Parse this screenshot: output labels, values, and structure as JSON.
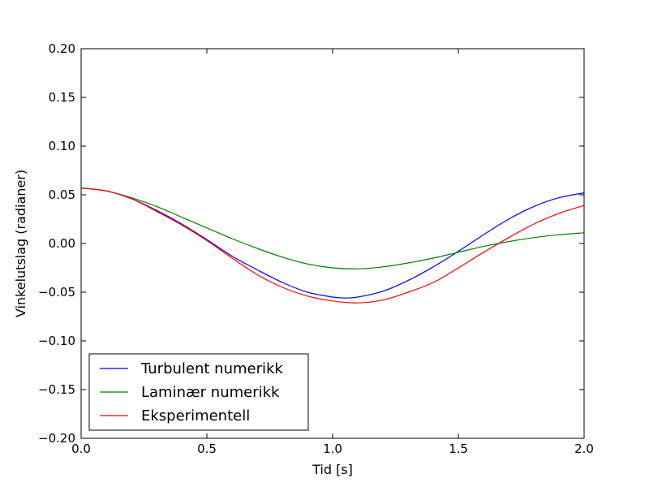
{
  "chart_data": {
    "type": "line",
    "xlabel": "Tid [s]",
    "ylabel": "Vinkelutslag (radianer)",
    "xlim": [
      0,
      2
    ],
    "ylim": [
      -0.2,
      0.2
    ],
    "xticks": [
      0.0,
      0.5,
      1.0,
      1.5,
      2.0
    ],
    "xtick_labels": [
      "0.0",
      "0.5",
      "1.0",
      "1.5",
      "2.0"
    ],
    "yticks": [
      -0.2,
      -0.15,
      -0.1,
      -0.05,
      0.0,
      0.05,
      0.1,
      0.15,
      0.2
    ],
    "ytick_labels": [
      "−0.20",
      "−0.15",
      "−0.10",
      "−0.05",
      "0.00",
      "0.05",
      "0.10",
      "0.15",
      "0.20"
    ],
    "grid": false,
    "legend_position": "lower-left",
    "series": [
      {
        "name": "Turbulent numerikk",
        "color": "#0000ff",
        "x": [
          0,
          0.1,
          0.2,
          0.3,
          0.4,
          0.5,
          0.6,
          0.7,
          0.8,
          0.9,
          1.0,
          1.05,
          1.1,
          1.2,
          1.3,
          1.4,
          1.5,
          1.6,
          1.7,
          1.8,
          1.9,
          2.0
        ],
        "y": [
          0.057,
          0.054,
          0.046,
          0.034,
          0.02,
          0.004,
          -0.013,
          -0.027,
          -0.04,
          -0.05,
          -0.055,
          -0.056,
          -0.055,
          -0.049,
          -0.038,
          -0.024,
          -0.008,
          0.009,
          0.025,
          0.038,
          0.047,
          0.052
        ]
      },
      {
        "name": "Laminær numerikk",
        "color": "#008000",
        "x": [
          0,
          0.1,
          0.2,
          0.3,
          0.4,
          0.5,
          0.6,
          0.7,
          0.8,
          0.9,
          1.0,
          1.1,
          1.2,
          1.3,
          1.4,
          1.5,
          1.6,
          1.7,
          1.8,
          1.9,
          2.0
        ],
        "y": [
          0.057,
          0.054,
          0.047,
          0.038,
          0.027,
          0.016,
          0.005,
          -0.005,
          -0.014,
          -0.021,
          -0.025,
          -0.026,
          -0.024,
          -0.02,
          -0.015,
          -0.009,
          -0.003,
          0.002,
          0.006,
          0.009,
          0.011
        ]
      },
      {
        "name": "Eksperimentell",
        "color": "#ff0000",
        "x": [
          0,
          0.1,
          0.2,
          0.3,
          0.4,
          0.5,
          0.6,
          0.7,
          0.8,
          0.9,
          1.0,
          1.1,
          1.2,
          1.3,
          1.4,
          1.5,
          1.6,
          1.7,
          1.8,
          1.9,
          2.0
        ],
        "y": [
          0.057,
          0.054,
          0.046,
          0.033,
          0.019,
          0.003,
          -0.015,
          -0.032,
          -0.045,
          -0.054,
          -0.059,
          -0.061,
          -0.058,
          -0.05,
          -0.04,
          -0.025,
          -0.009,
          0.006,
          0.02,
          0.031,
          0.039
        ]
      }
    ]
  }
}
